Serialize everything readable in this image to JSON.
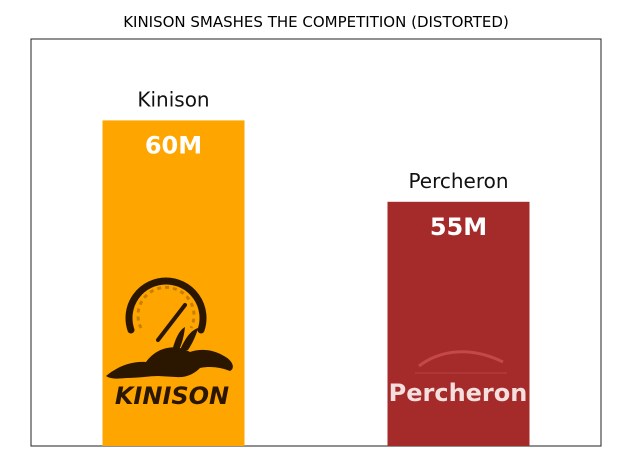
{
  "chart_data": {
    "type": "bar",
    "title": "KINISON SMASHES THE COMPETITION (DISTORTED)",
    "xlabel": "",
    "ylabel": "",
    "categories": [
      "Kinison",
      "Percheron"
    ],
    "values": [
      60,
      55
    ],
    "value_labels": [
      "60M",
      "55M"
    ],
    "ylim": [
      40,
      65
    ],
    "axes_visible": false,
    "grid": false,
    "colors": [
      "#FFA500",
      "#A52A2A"
    ],
    "logos": [
      {
        "icon": "kinison-speedometer-rabbit-logo",
        "text": "KINISON",
        "text_color": "#2b1700"
      },
      {
        "icon": "percheron-roof-arc-logo",
        "text": "Percheron",
        "text_color": "#f4dede"
      }
    ]
  }
}
